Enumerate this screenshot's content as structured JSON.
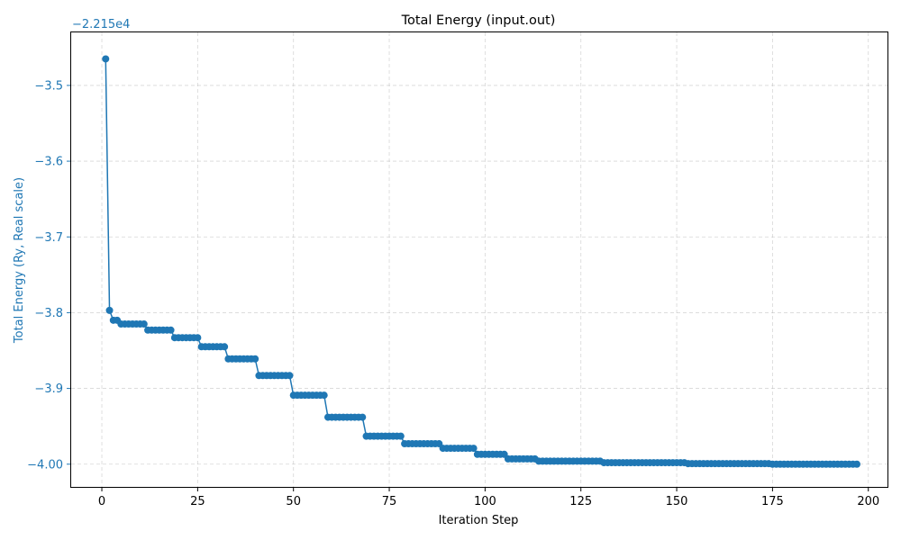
{
  "chart_data": {
    "type": "line",
    "title": "Total Energy (input.out)",
    "xlabel": "Iteration Step",
    "ylabel": "Total Energy (Ry, Real scale)",
    "y_offset_label": "−2.215e4",
    "y_offset": -22150,
    "xlim": [
      -8,
      205
    ],
    "ylim": [
      -4.03,
      -3.43
    ],
    "xticks": [
      0,
      25,
      50,
      75,
      100,
      125,
      150,
      175,
      200
    ],
    "yticks": [
      -4.0,
      -3.9,
      -3.8,
      -3.7,
      -3.6,
      -3.5
    ],
    "ytick_labels": [
      "−4.00",
      "−3.9",
      "−3.8",
      "−3.7",
      "−3.6",
      "−3.5"
    ],
    "grid": true,
    "line_color": "#1f77b4",
    "axis_label_color": "#1f77b4",
    "marker": "circle",
    "plateaus": [
      {
        "from": 1,
        "to": 1,
        "value": -3.465
      },
      {
        "from": 2,
        "to": 2,
        "value": -3.797
      },
      {
        "from": 3,
        "to": 4,
        "value": -3.81
      },
      {
        "from": 5,
        "to": 11,
        "value": -3.815
      },
      {
        "from": 12,
        "to": 18,
        "value": -3.823
      },
      {
        "from": 19,
        "to": 25,
        "value": -3.833
      },
      {
        "from": 26,
        "to": 32,
        "value": -3.845
      },
      {
        "from": 33,
        "to": 40,
        "value": -3.861
      },
      {
        "from": 41,
        "to": 49,
        "value": -3.883
      },
      {
        "from": 50,
        "to": 58,
        "value": -3.909
      },
      {
        "from": 59,
        "to": 68,
        "value": -3.938
      },
      {
        "from": 69,
        "to": 78,
        "value": -3.963
      },
      {
        "from": 79,
        "to": 88,
        "value": -3.973
      },
      {
        "from": 89,
        "to": 97,
        "value": -3.979
      },
      {
        "from": 98,
        "to": 105,
        "value": -3.987
      },
      {
        "from": 106,
        "to": 113,
        "value": -3.993
      },
      {
        "from": 114,
        "to": 130,
        "value": -3.996
      },
      {
        "from": 131,
        "to": 152,
        "value": -3.998
      },
      {
        "from": 153,
        "to": 174,
        "value": -3.9993
      },
      {
        "from": 175,
        "to": 197,
        "value": -4.0
      }
    ]
  }
}
